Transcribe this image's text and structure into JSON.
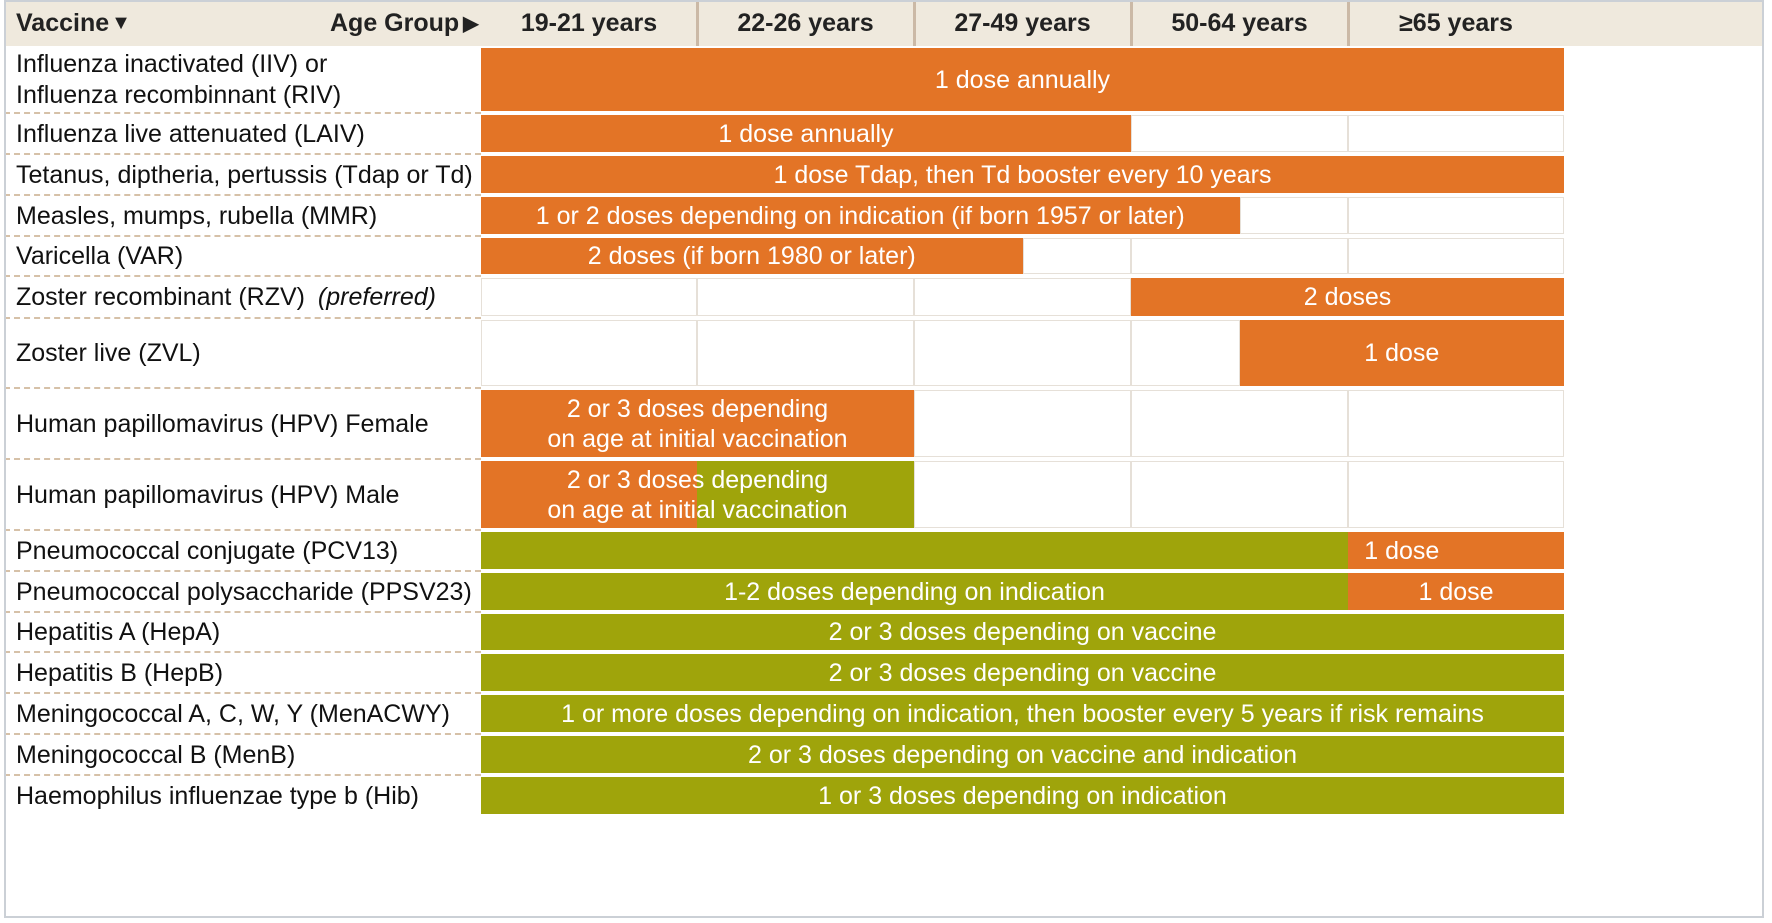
{
  "header": {
    "vaccine_label": "Vaccine",
    "vaccine_arrow": "▼",
    "age_group_label": "Age Group",
    "age_group_arrow": "▶",
    "columns": [
      "19-21 years",
      "22-26 years",
      "27-49 years",
      "50-64 years",
      "≥65 years"
    ]
  },
  "colors": {
    "orange": "#e37426",
    "green": "#9fa40b",
    "white": "#ffffff",
    "header_bg": "#efe9dd"
  },
  "rows": [
    {
      "label": "Influenza inactivated (IIV) or",
      "label2": "Influenza recombinnant (RIV)"
    },
    {
      "label": "Influenza live attenuated (LAIV)"
    },
    {
      "label": "Tetanus, diptheria, pertussis (Tdap or Td)"
    },
    {
      "label": "Measles, mumps, rubella (MMR)"
    },
    {
      "label": "Varicella (VAR)"
    },
    {
      "label": "Zoster recombinant (RZV)",
      "label_italic": "(preferred)"
    },
    {
      "label": "Zoster live (ZVL)"
    },
    {
      "label": "Human papillomavirus (HPV) Female"
    },
    {
      "label": "Human papillomavirus (HPV) Male"
    },
    {
      "label": "Pneumococcal conjugate (PCV13)"
    },
    {
      "label": "Pneumococcal polysaccharide (PPSV23)"
    },
    {
      "label": "Hepatitis A (HepA)"
    },
    {
      "label": "Hepatitis B (HepB)"
    },
    {
      "label": "Meningococcal A, C, W, Y (MenACWY)"
    },
    {
      "label": "Meningococcal B (MenB)"
    },
    {
      "label": "Haemophilus influenzae type b (Hib)"
    }
  ],
  "cells": [
    {
      "row": 0,
      "from": 0,
      "to": 5,
      "color": "orange"
    },
    {
      "row": 1,
      "from": 0,
      "to": 3,
      "color": "orange"
    },
    {
      "row": 1,
      "from": 3,
      "to": 4,
      "color": "white"
    },
    {
      "row": 1,
      "from": 4,
      "to": 5,
      "color": "white"
    },
    {
      "row": 2,
      "from": 0,
      "to": 5,
      "color": "orange"
    },
    {
      "row": 3,
      "from": 0,
      "to": 3.5,
      "color": "orange"
    },
    {
      "row": 3,
      "from": 3.5,
      "to": 4,
      "color": "white"
    },
    {
      "row": 3,
      "from": 4,
      "to": 5,
      "color": "white"
    },
    {
      "row": 4,
      "from": 0,
      "to": 2.5,
      "color": "orange"
    },
    {
      "row": 4,
      "from": 2.5,
      "to": 3,
      "color": "white"
    },
    {
      "row": 4,
      "from": 3,
      "to": 4,
      "color": "white"
    },
    {
      "row": 4,
      "from": 4,
      "to": 5,
      "color": "white"
    },
    {
      "row": 5,
      "from": 0,
      "to": 1,
      "color": "white"
    },
    {
      "row": 5,
      "from": 1,
      "to": 2,
      "color": "white"
    },
    {
      "row": 5,
      "from": 2,
      "to": 3,
      "color": "white"
    },
    {
      "row": 5,
      "from": 3,
      "to": 5,
      "color": "orange"
    },
    {
      "row": 6,
      "from": 0,
      "to": 1,
      "color": "white"
    },
    {
      "row": 6,
      "from": 1,
      "to": 2,
      "color": "white"
    },
    {
      "row": 6,
      "from": 2,
      "to": 3,
      "color": "white"
    },
    {
      "row": 6,
      "from": 3,
      "to": 3.5,
      "color": "white"
    },
    {
      "row": 6,
      "from": 3.5,
      "to": 5,
      "color": "orange"
    },
    {
      "row": 7,
      "from": 0,
      "to": 2,
      "color": "orange"
    },
    {
      "row": 7,
      "from": 2,
      "to": 3,
      "color": "white"
    },
    {
      "row": 7,
      "from": 3,
      "to": 4,
      "color": "white"
    },
    {
      "row": 7,
      "from": 4,
      "to": 5,
      "color": "white"
    },
    {
      "row": 8,
      "from": 0,
      "to": 1,
      "color": "orange"
    },
    {
      "row": 8,
      "from": 1,
      "to": 2,
      "color": "green"
    },
    {
      "row": 8,
      "from": 2,
      "to": 3,
      "color": "white"
    },
    {
      "row": 8,
      "from": 3,
      "to": 4,
      "color": "white"
    },
    {
      "row": 8,
      "from": 4,
      "to": 5,
      "color": "white"
    },
    {
      "row": 9,
      "from": 0,
      "to": 4,
      "color": "green"
    },
    {
      "row": 9,
      "from": 4,
      "to": 5,
      "color": "orange"
    },
    {
      "row": 10,
      "from": 0,
      "to": 4,
      "color": "green"
    },
    {
      "row": 10,
      "from": 4,
      "to": 5,
      "color": "orange"
    },
    {
      "row": 11,
      "from": 0,
      "to": 5,
      "color": "green"
    },
    {
      "row": 12,
      "from": 0,
      "to": 5,
      "color": "green"
    },
    {
      "row": 13,
      "from": 0,
      "to": 5,
      "color": "green"
    },
    {
      "row": 14,
      "from": 0,
      "to": 5,
      "color": "green"
    },
    {
      "row": 15,
      "from": 0,
      "to": 5,
      "color": "green"
    }
  ],
  "bar_texts": [
    {
      "row": 0,
      "from": 0,
      "to": 5,
      "lines": [
        "1 dose annually"
      ]
    },
    {
      "row": 1,
      "from": 0,
      "to": 3,
      "lines": [
        "1 dose annually"
      ]
    },
    {
      "row": 2,
      "from": 0,
      "to": 5,
      "lines": [
        "1 dose Tdap, then Td booster every 10 years"
      ]
    },
    {
      "row": 3,
      "from": 0,
      "to": 3.5,
      "lines": [
        "1 or 2 doses depending on indication (if born 1957 or later)"
      ]
    },
    {
      "row": 4,
      "from": 0,
      "to": 2.5,
      "lines": [
        "2 doses (if born 1980 or later)"
      ]
    },
    {
      "row": 5,
      "from": 3,
      "to": 5,
      "lines": [
        "2 doses"
      ]
    },
    {
      "row": 6,
      "from": 3.5,
      "to": 5,
      "lines": [
        "1 dose"
      ]
    },
    {
      "row": 7,
      "from": 0,
      "to": 2,
      "lines": [
        "2 or 3 doses depending",
        "on age at initial vaccination"
      ]
    },
    {
      "row": 8,
      "from": 0,
      "to": 2,
      "lines": [
        "2 or 3 doses depending",
        "on age at initial vaccination"
      ]
    },
    {
      "row": 9,
      "from": 3.5,
      "to": 5,
      "lines": [
        "1 dose"
      ]
    },
    {
      "row": 10,
      "from": 0,
      "to": 4,
      "lines": [
        "1-2 doses depending on indication"
      ]
    },
    {
      "row": 10,
      "from": 4,
      "to": 5,
      "lines": [
        "1 dose"
      ]
    },
    {
      "row": 11,
      "from": 0,
      "to": 5,
      "lines": [
        "2 or 3 doses depending on vaccine"
      ]
    },
    {
      "row": 12,
      "from": 0,
      "to": 5,
      "lines": [
        "2 or 3 doses depending on vaccine"
      ]
    },
    {
      "row": 13,
      "from": 0,
      "to": 5,
      "lines": [
        "1 or more doses depending on indication, then booster every 5 years if risk remains"
      ]
    },
    {
      "row": 14,
      "from": 0,
      "to": 5,
      "lines": [
        "2 or 3 doses depending on vaccine and indication"
      ]
    },
    {
      "row": 15,
      "from": 0,
      "to": 5,
      "lines": [
        "1 or 3 doses depending on indication"
      ]
    }
  ]
}
